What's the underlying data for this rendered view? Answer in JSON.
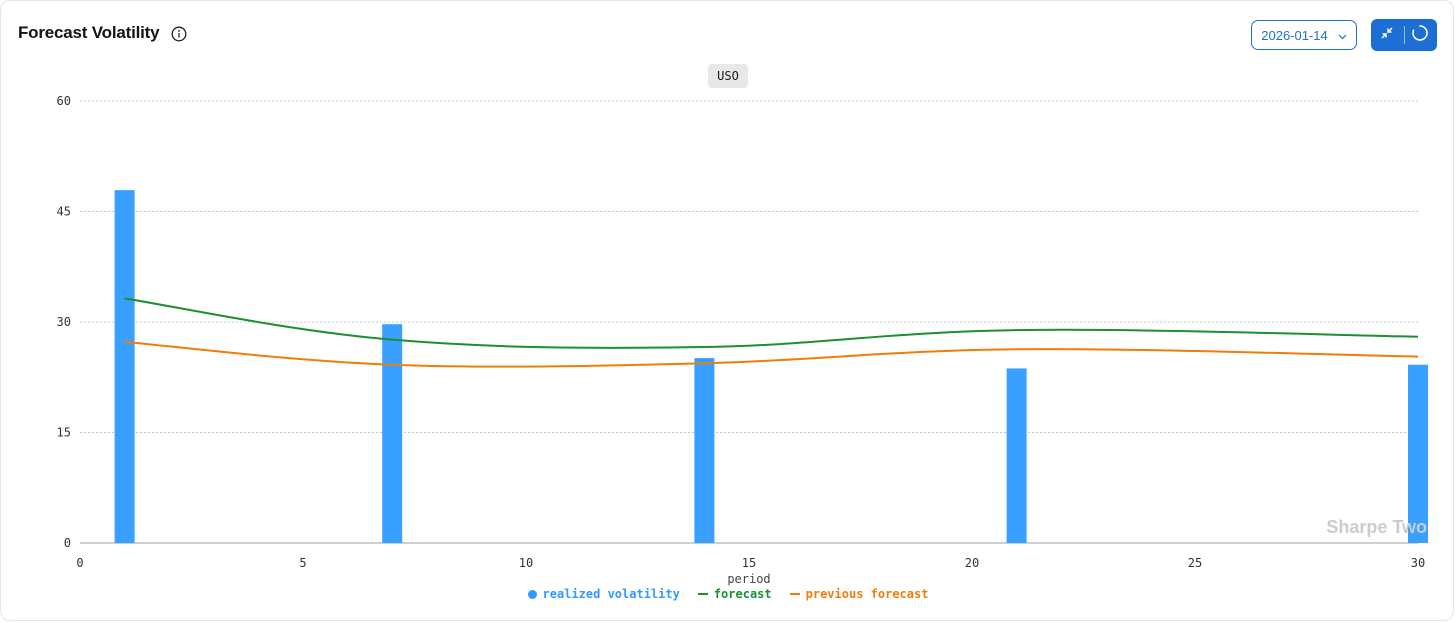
{
  "header": {
    "title": "Forecast Volatility",
    "info_icon": "info-icon"
  },
  "controls": {
    "date_value": "2026-01-14",
    "dropdown_icon": "chevron-down-icon",
    "collapse_icon": "collapse-icon",
    "loading_icon": "spinner-icon",
    "accent_color": "#1d6fd6"
  },
  "ticker": "USO",
  "watermark": "Sharpe Two",
  "legend": [
    {
      "label": "realized volatility",
      "color": "#2f9bff",
      "marker": "dot"
    },
    {
      "label": "forecast",
      "color": "#1a8f33",
      "marker": "line"
    },
    {
      "label": "previous forecast",
      "color": "#f07d0a",
      "marker": "line"
    }
  ],
  "chart_data": {
    "type": "bar",
    "xlabel": "period",
    "ylabel": "",
    "xlim": [
      0,
      30
    ],
    "ylim": [
      0,
      60
    ],
    "xticks": [
      0,
      5,
      10,
      15,
      20,
      25,
      30
    ],
    "yticks": [
      0,
      15,
      30,
      45,
      60
    ],
    "grid": true,
    "legend_position": "bottom-center",
    "series": [
      {
        "name": "realized volatility",
        "type": "bar",
        "color": "#2f9bff",
        "x": [
          1,
          7,
          14,
          21,
          30
        ],
        "y": [
          47.9,
          29.7,
          25.1,
          23.7,
          24.2
        ]
      },
      {
        "name": "forecast",
        "type": "line",
        "color": "#1a8f33",
        "x": [
          1,
          7,
          14,
          21,
          30
        ],
        "y": [
          33.2,
          27.6,
          26.6,
          28.9,
          28.0
        ]
      },
      {
        "name": "previous forecast",
        "type": "line",
        "color": "#f07d0a",
        "x": [
          1,
          7,
          14,
          21,
          30
        ],
        "y": [
          27.3,
          24.2,
          24.4,
          26.3,
          25.3
        ]
      }
    ]
  }
}
